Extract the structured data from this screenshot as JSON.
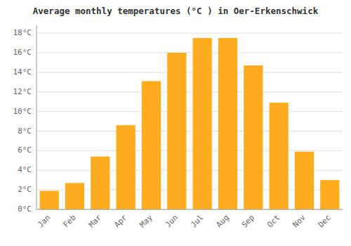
{
  "chart_data": {
    "type": "bar",
    "title": "Average monthly temperatures (°C ) in Oer-Erkenschwick",
    "categories": [
      "Jan",
      "Feb",
      "Mar",
      "Apr",
      "May",
      "Jun",
      "Jul",
      "Aug",
      "Sep",
      "Oct",
      "Nov",
      "Dec"
    ],
    "values": [
      1.9,
      2.7,
      5.4,
      8.6,
      13.1,
      16.0,
      17.5,
      17.5,
      14.7,
      10.9,
      5.9,
      3.0
    ],
    "color": "#FFAD1F",
    "ylim": [
      0,
      18.8
    ],
    "yticks": [
      {
        "value": 0,
        "label": "0°C"
      },
      {
        "value": 2,
        "label": "2°C"
      },
      {
        "value": 4,
        "label": "4°C"
      },
      {
        "value": 6,
        "label": "6°C"
      },
      {
        "value": 8,
        "label": "8°C"
      },
      {
        "value": 10,
        "label": "10°C"
      },
      {
        "value": 12,
        "label": "12°C"
      },
      {
        "value": 14,
        "label": "14°C"
      },
      {
        "value": 16,
        "label": "16°C"
      },
      {
        "value": 18,
        "label": "18°C"
      }
    ],
    "grid": true
  }
}
